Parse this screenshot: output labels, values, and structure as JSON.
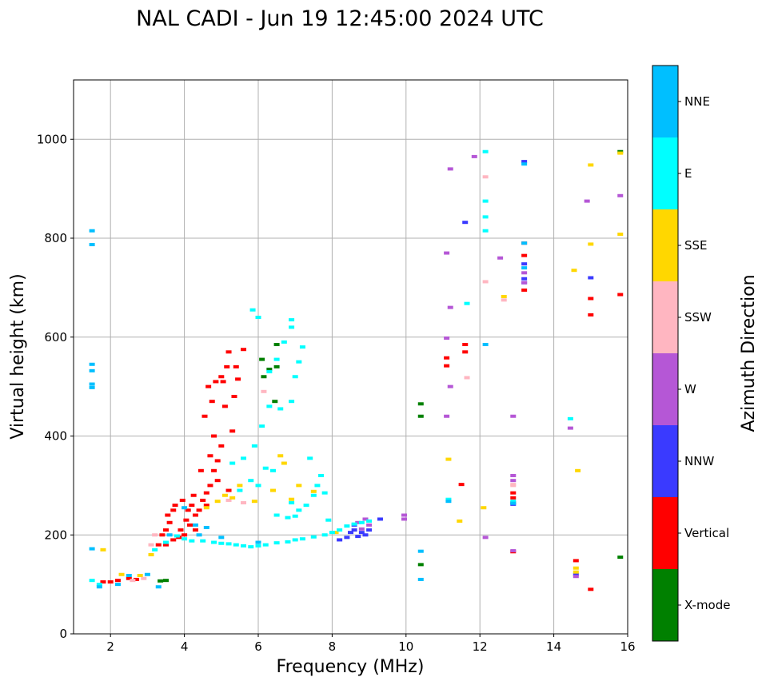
{
  "chart_data": {
    "type": "scatter",
    "title": "NAL CADI - Jun 19 12:45:00 2024 UTC",
    "xlabel": "Frequency (MHz)",
    "ylabel": "Virtual height (km)",
    "xlim": [
      1,
      16
    ],
    "ylim": [
      0,
      1120
    ],
    "xticks": [
      2,
      4,
      6,
      8,
      10,
      12,
      14,
      16
    ],
    "yticks": [
      0,
      200,
      400,
      600,
      800,
      1000
    ],
    "grid": true,
    "colorbar": {
      "label": "Azimuth Direction",
      "categories": [
        {
          "name": "X-mode",
          "color": "#008000"
        },
        {
          "name": "Vertical",
          "color": "#ff0000"
        },
        {
          "name": "NNW",
          "color": "#3a3aff"
        },
        {
          "name": "W",
          "color": "#b557d6"
        },
        {
          "name": "SSW",
          "color": "#ffb6c1"
        },
        {
          "name": "SSE",
          "color": "#ffd700"
        },
        {
          "name": "E",
          "color": "#00ffff"
        },
        {
          "name": "NNE",
          "color": "#00bfff"
        }
      ]
    },
    "series": [
      {
        "name": "X-mode",
        "points": [
          [
            3.35,
            107
          ],
          [
            6.1,
            555
          ],
          [
            6.15,
            520
          ],
          [
            6.5,
            585
          ],
          [
            6.5,
            540
          ],
          [
            6.45,
            470
          ],
          [
            6.3,
            535
          ],
          [
            10.4,
            465
          ],
          [
            10.4,
            440
          ],
          [
            10.4,
            140
          ],
          [
            15.8,
            155
          ],
          [
            15.8,
            975
          ],
          [
            3.5,
            108
          ]
        ]
      },
      {
        "name": "Vertical",
        "points": [
          [
            1.8,
            105
          ],
          [
            2.0,
            105
          ],
          [
            2.2,
            108
          ],
          [
            2.5,
            112
          ],
          [
            2.7,
            110
          ],
          [
            3.3,
            180
          ],
          [
            3.4,
            200
          ],
          [
            3.5,
            210
          ],
          [
            3.55,
            240
          ],
          [
            3.6,
            225
          ],
          [
            3.7,
            250
          ],
          [
            3.75,
            260
          ],
          [
            3.85,
            195
          ],
          [
            3.9,
            210
          ],
          [
            3.95,
            270
          ],
          [
            4.05,
            230
          ],
          [
            4.1,
            250
          ],
          [
            4.15,
            220
          ],
          [
            4.2,
            260
          ],
          [
            4.25,
            280
          ],
          [
            4.3,
            240
          ],
          [
            4.4,
            250
          ],
          [
            4.5,
            270
          ],
          [
            4.6,
            285
          ],
          [
            4.7,
            300
          ],
          [
            4.8,
            330
          ],
          [
            4.9,
            350
          ],
          [
            4.55,
            440
          ],
          [
            4.75,
            470
          ],
          [
            4.65,
            500
          ],
          [
            4.85,
            510
          ],
          [
            5.0,
            520
          ],
          [
            5.05,
            510
          ],
          [
            5.15,
            540
          ],
          [
            5.2,
            570
          ],
          [
            5.1,
            460
          ],
          [
            5.3,
            410
          ],
          [
            4.8,
            400
          ],
          [
            5.0,
            380
          ],
          [
            4.7,
            360
          ],
          [
            4.9,
            310
          ],
          [
            5.2,
            290
          ],
          [
            4.45,
            330
          ],
          [
            4.6,
            260
          ],
          [
            5.35,
            480
          ],
          [
            5.4,
            540
          ],
          [
            5.6,
            575
          ],
          [
            5.45,
            515
          ],
          [
            4.3,
            210
          ],
          [
            4.0,
            200
          ],
          [
            3.7,
            190
          ],
          [
            3.5,
            180
          ],
          [
            11.1,
            558
          ],
          [
            11.1,
            542
          ],
          [
            11.5,
            302
          ],
          [
            11.6,
            585
          ],
          [
            11.6,
            570
          ],
          [
            12.9,
            285
          ],
          [
            12.9,
            275
          ],
          [
            12.9,
            265
          ],
          [
            13.2,
            790
          ],
          [
            13.2,
            765
          ],
          [
            13.2,
            695
          ],
          [
            15.0,
            678
          ],
          [
            15.0,
            645
          ],
          [
            15.8,
            686
          ],
          [
            15.0,
            90
          ],
          [
            14.6,
            148
          ],
          [
            12.9,
            166
          ]
        ]
      },
      {
        "name": "NNW",
        "points": [
          [
            8.4,
            195
          ],
          [
            8.5,
            205
          ],
          [
            8.6,
            210
          ],
          [
            8.8,
            205
          ],
          [
            8.9,
            200
          ],
          [
            9.0,
            210
          ],
          [
            9.3,
            232
          ],
          [
            8.2,
            190
          ],
          [
            13.2,
            748
          ],
          [
            13.2,
            718
          ],
          [
            13.2,
            710
          ],
          [
            15.0,
            720
          ],
          [
            11.6,
            832
          ],
          [
            13.2,
            955
          ],
          [
            12.9,
            262
          ],
          [
            14.6,
            120
          ],
          [
            8.6,
            220
          ],
          [
            8.7,
            197
          ]
        ]
      },
      {
        "name": "W",
        "points": [
          [
            8.7,
            225
          ],
          [
            8.9,
            232
          ],
          [
            9.0,
            220
          ],
          [
            9.95,
            240
          ],
          [
            9.95,
            232
          ],
          [
            11.1,
            440
          ],
          [
            11.2,
            500
          ],
          [
            11.1,
            598
          ],
          [
            11.2,
            660
          ],
          [
            11.1,
            770
          ],
          [
            11.2,
            940
          ],
          [
            11.85,
            965
          ],
          [
            12.15,
            195
          ],
          [
            12.55,
            760
          ],
          [
            12.9,
            440
          ],
          [
            12.9,
            320
          ],
          [
            12.9,
            310
          ],
          [
            12.9,
            168
          ],
          [
            13.2,
            730
          ],
          [
            13.2,
            710
          ],
          [
            14.45,
            416
          ],
          [
            14.9,
            875
          ],
          [
            15.8,
            886
          ],
          [
            14.6,
            116
          ],
          [
            8.8,
            212
          ]
        ]
      },
      {
        "name": "SSW",
        "points": [
          [
            2.6,
            108
          ],
          [
            2.9,
            112
          ],
          [
            3.1,
            180
          ],
          [
            3.2,
            200
          ],
          [
            6.15,
            490
          ],
          [
            11.65,
            518
          ],
          [
            12.15,
            924
          ],
          [
            12.15,
            712
          ],
          [
            12.65,
            675
          ],
          [
            12.9,
            300
          ],
          [
            12.9,
            302
          ],
          [
            5.2,
            270
          ],
          [
            5.6,
            265
          ]
        ]
      },
      {
        "name": "SSE",
        "points": [
          [
            1.8,
            170
          ],
          [
            2.3,
            120
          ],
          [
            2.8,
            118
          ],
          [
            3.1,
            160
          ],
          [
            4.6,
            255
          ],
          [
            4.9,
            268
          ],
          [
            5.1,
            280
          ],
          [
            5.3,
            275
          ],
          [
            5.5,
            300
          ],
          [
            5.9,
            268
          ],
          [
            6.4,
            290
          ],
          [
            6.6,
            360
          ],
          [
            6.7,
            345
          ],
          [
            6.9,
            272
          ],
          [
            7.1,
            300
          ],
          [
            7.5,
            288
          ],
          [
            8.1,
            205
          ],
          [
            11.15,
            353
          ],
          [
            11.45,
            228
          ],
          [
            12.1,
            255
          ],
          [
            12.65,
            682
          ],
          [
            14.65,
            330
          ],
          [
            14.55,
            735
          ],
          [
            15.0,
            948
          ],
          [
            15.0,
            788
          ],
          [
            15.8,
            972
          ],
          [
            15.8,
            808
          ],
          [
            14.6,
            133
          ],
          [
            14.6,
            125
          ]
        ]
      },
      {
        "name": "E",
        "points": [
          [
            1.5,
            108
          ],
          [
            1.7,
            100
          ],
          [
            3.2,
            170
          ],
          [
            3.5,
            185
          ],
          [
            3.8,
            198
          ],
          [
            4.0,
            192
          ],
          [
            4.2,
            188
          ],
          [
            4.5,
            188
          ],
          [
            4.8,
            185
          ],
          [
            5.0,
            183
          ],
          [
            5.2,
            182
          ],
          [
            5.4,
            180
          ],
          [
            5.6,
            178
          ],
          [
            5.8,
            176
          ],
          [
            6.0,
            178
          ],
          [
            6.2,
            180
          ],
          [
            6.5,
            184
          ],
          [
            6.8,
            186
          ],
          [
            7.0,
            190
          ],
          [
            7.2,
            192
          ],
          [
            7.5,
            196
          ],
          [
            7.8,
            200
          ],
          [
            8.0,
            205
          ],
          [
            8.2,
            210
          ],
          [
            8.4,
            218
          ],
          [
            8.6,
            222
          ],
          [
            8.8,
            225
          ],
          [
            9.0,
            228
          ],
          [
            6.5,
            240
          ],
          [
            6.8,
            235
          ],
          [
            7.0,
            238
          ],
          [
            7.3,
            260
          ],
          [
            7.5,
            280
          ],
          [
            7.6,
            300
          ],
          [
            7.7,
            320
          ],
          [
            7.8,
            285
          ],
          [
            7.1,
            250
          ],
          [
            6.9,
            265
          ],
          [
            6.2,
            335
          ],
          [
            6.4,
            330
          ],
          [
            6.0,
            300
          ],
          [
            5.8,
            310
          ],
          [
            5.5,
            290
          ],
          [
            5.3,
            345
          ],
          [
            5.6,
            355
          ],
          [
            5.9,
            380
          ],
          [
            6.1,
            420
          ],
          [
            6.3,
            460
          ],
          [
            6.6,
            455
          ],
          [
            6.9,
            470
          ],
          [
            7.0,
            520
          ],
          [
            7.1,
            550
          ],
          [
            7.2,
            580
          ],
          [
            6.9,
            620
          ],
          [
            6.7,
            590
          ],
          [
            6.5,
            555
          ],
          [
            6.3,
            530
          ],
          [
            5.85,
            655
          ],
          [
            6.9,
            635
          ],
          [
            6.0,
            640
          ],
          [
            12.15,
            875
          ],
          [
            12.15,
            843
          ],
          [
            12.15,
            815
          ],
          [
            11.65,
            668
          ],
          [
            11.15,
            272
          ],
          [
            14.45,
            435
          ],
          [
            12.15,
            975
          ],
          [
            12.9,
            268
          ],
          [
            7.9,
            230
          ],
          [
            7.4,
            355
          ]
        ]
      },
      {
        "name": "NNE",
        "points": [
          [
            1.5,
            815
          ],
          [
            1.5,
            787
          ],
          [
            1.5,
            545
          ],
          [
            1.5,
            532
          ],
          [
            1.5,
            505
          ],
          [
            1.5,
            498
          ],
          [
            1.5,
            172
          ],
          [
            1.7,
            95
          ],
          [
            2.2,
            100
          ],
          [
            2.5,
            118
          ],
          [
            3.0,
            120
          ],
          [
            3.3,
            95
          ],
          [
            4.0,
            255
          ],
          [
            4.3,
            220
          ],
          [
            4.6,
            215
          ],
          [
            5.0,
            195
          ],
          [
            6.0,
            185
          ],
          [
            10.4,
            167
          ],
          [
            10.4,
            110
          ],
          [
            12.15,
            585
          ],
          [
            13.2,
            950
          ],
          [
            13.2,
            790
          ],
          [
            13.2,
            740
          ],
          [
            11.15,
            268
          ],
          [
            12.9,
            264
          ],
          [
            4.4,
            200
          ],
          [
            3.6,
            200
          ]
        ]
      }
    ]
  }
}
